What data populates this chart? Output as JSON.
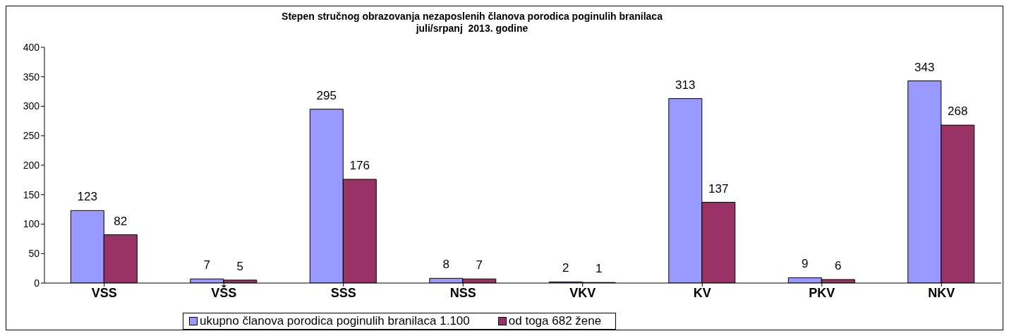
{
  "chart_data": {
    "type": "bar",
    "title": "Stepen stručnog obrazovanja nezaposlenih članova porodica poginulih branilaca",
    "subtitle": "juli/srpanj  2013. godine",
    "categories": [
      "VSS",
      "VŠS",
      "SSS",
      "NSS",
      "VKV",
      "KV",
      "PKV",
      "NKV"
    ],
    "series": [
      {
        "name": "ukupno članova porodica poginulih branilaca 1.100",
        "color": "#9999ff",
        "values": [
          123,
          7,
          295,
          8,
          2,
          313,
          9,
          343
        ]
      },
      {
        "name": "od toga 682 žene",
        "color": "#993366",
        "values": [
          82,
          5,
          176,
          7,
          1,
          137,
          6,
          268
        ]
      }
    ],
    "ylim": [
      0,
      400
    ],
    "yticks": [
      0,
      50,
      100,
      150,
      200,
      250,
      300,
      350,
      400
    ],
    "grid": false,
    "legend": "bottom",
    "data_labels": true
  }
}
